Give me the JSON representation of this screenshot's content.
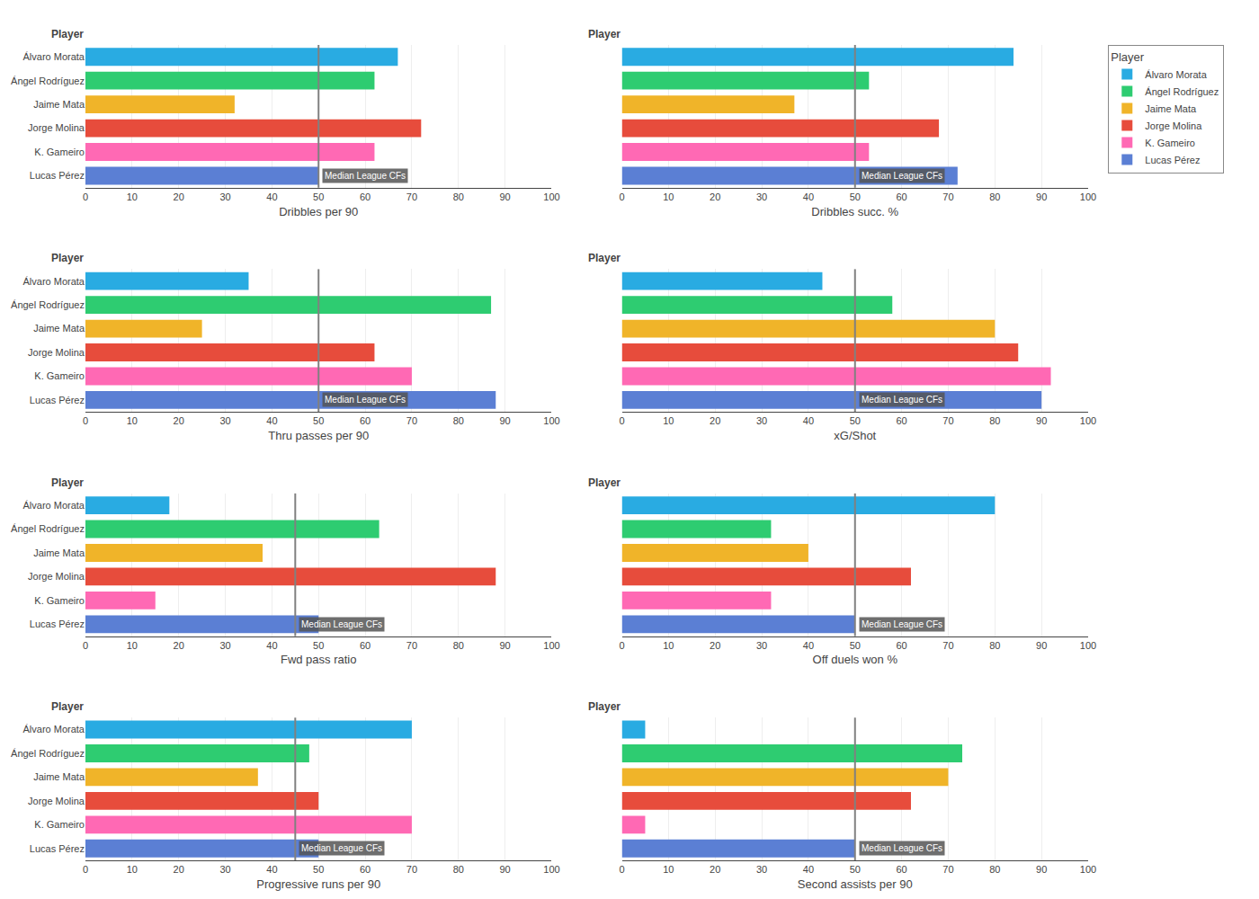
{
  "chart_data": [
    {
      "type": "bar",
      "orientation": "horizontal",
      "xlabel": "Dribbles per 90",
      "ylabel": "Player",
      "categories": [
        "Álvaro Morata",
        "Ángel Rodríguez",
        "Jaime Mata",
        "Jorge Molina",
        "K. Gameiro",
        "Lucas Pérez"
      ],
      "values": [
        67,
        62,
        32,
        72,
        62,
        50
      ],
      "colors": [
        "#29ABE2",
        "#2ECC71",
        "#F0B429",
        "#E74C3C",
        "#FF69B4",
        "#5B7FD4"
      ],
      "median": {
        "value": 50,
        "label": "Median League CFs",
        "color": "#808080"
      },
      "xlim": [
        0,
        100
      ],
      "xticks": [
        0,
        10,
        20,
        30,
        40,
        50,
        60,
        70,
        80,
        90,
        100
      ],
      "grid": true
    },
    {
      "type": "bar",
      "orientation": "horizontal",
      "xlabel": "Dribbles succ. %",
      "ylabel": "Player",
      "categories": [
        "Álvaro Morata",
        "Ángel Rodríguez",
        "Jaime Mata",
        "Jorge Molina",
        "K. Gameiro",
        "Lucas Pérez"
      ],
      "values": [
        84,
        53,
        37,
        68,
        53,
        72
      ],
      "colors": [
        "#29ABE2",
        "#2ECC71",
        "#F0B429",
        "#E74C3C",
        "#FF69B4",
        "#5B7FD4"
      ],
      "median": {
        "value": 50,
        "label": "Median League CFs",
        "color": "#808080"
      },
      "xlim": [
        0,
        100
      ],
      "xticks": [
        0,
        10,
        20,
        30,
        40,
        50,
        60,
        70,
        80,
        90,
        100
      ],
      "grid": true,
      "tick_labels": "x",
      "legend": "upper right",
      "legend_title": "Player"
    },
    {
      "type": "bar",
      "orientation": "horizontal",
      "xlabel": "Thru passes per 90",
      "ylabel": "Player",
      "categories": [
        "Álvaro Morata",
        "Ángel Rodríguez",
        "Jaime Mata",
        "Jorge Molina",
        "K. Gameiro",
        "Lucas Pérez"
      ],
      "values": [
        35,
        87,
        25,
        62,
        70,
        88
      ],
      "colors": [
        "#29ABE2",
        "#2ECC71",
        "#F0B429",
        "#E74C3C",
        "#FF69B4",
        "#5B7FD4"
      ],
      "median": {
        "value": 50,
        "label": "Median League CFs",
        "color": "#808080"
      },
      "xlim": [
        0,
        100
      ],
      "xticks": [
        0,
        10,
        20,
        30,
        40,
        50,
        60,
        70,
        80,
        90,
        100
      ],
      "grid": true
    },
    {
      "type": "bar",
      "orientation": "horizontal",
      "xlabel": "xG/Shot",
      "ylabel": "Player",
      "categories": [
        "Álvaro Morata",
        "Ángel Rodríguez",
        "Jaime Mata",
        "Jorge Molina",
        "K. Gameiro",
        "Lucas Pérez"
      ],
      "values": [
        43,
        58,
        80,
        85,
        92,
        90
      ],
      "colors": [
        "#29ABE2",
        "#2ECC71",
        "#F0B429",
        "#E74C3C",
        "#FF69B4",
        "#5B7FD4"
      ],
      "median": {
        "value": 50,
        "label": "Median League CFs",
        "color": "#808080"
      },
      "xlim": [
        0,
        100
      ],
      "xticks": [
        0,
        10,
        20,
        30,
        40,
        50,
        60,
        70,
        80,
        90,
        100
      ],
      "grid": true,
      "tick_labels": "x"
    },
    {
      "type": "bar",
      "orientation": "horizontal",
      "xlabel": "Fwd pass ratio",
      "ylabel": "Player",
      "categories": [
        "Álvaro Morata",
        "Ángel Rodríguez",
        "Jaime Mata",
        "Jorge Molina",
        "K. Gameiro",
        "Lucas Pérez"
      ],
      "values": [
        18,
        63,
        38,
        88,
        15,
        50
      ],
      "colors": [
        "#29ABE2",
        "#2ECC71",
        "#F0B429",
        "#E74C3C",
        "#FF69B4",
        "#5B7FD4"
      ],
      "median": {
        "value": 45,
        "label": "Median League CFs",
        "color": "#808080"
      },
      "xlim": [
        0,
        100
      ],
      "xticks": [
        0,
        10,
        20,
        30,
        40,
        50,
        60,
        70,
        80,
        90,
        100
      ],
      "grid": true
    },
    {
      "type": "bar",
      "orientation": "horizontal",
      "xlabel": "Off duels won %",
      "ylabel": "Player",
      "categories": [
        "Álvaro Morata",
        "Ángel Rodríguez",
        "Jaime Mata",
        "Jorge Molina",
        "K. Gameiro",
        "Lucas Pérez"
      ],
      "values": [
        80,
        32,
        40,
        62,
        32,
        50
      ],
      "colors": [
        "#29ABE2",
        "#2ECC71",
        "#F0B429",
        "#E74C3C",
        "#FF69B4",
        "#5B7FD4"
      ],
      "median": {
        "value": 50,
        "label": "Median League CFs",
        "color": "#808080"
      },
      "xlim": [
        0,
        100
      ],
      "xticks": [
        0,
        10,
        20,
        30,
        40,
        50,
        60,
        70,
        80,
        90,
        100
      ],
      "grid": true,
      "tick_labels": "x"
    },
    {
      "type": "bar",
      "orientation": "horizontal",
      "xlabel": "Progressive runs per 90",
      "ylabel": "Player",
      "categories": [
        "Álvaro Morata",
        "Ángel Rodríguez",
        "Jaime Mata",
        "Jorge Molina",
        "K. Gameiro",
        "Lucas Pérez"
      ],
      "values": [
        70,
        48,
        37,
        50,
        70,
        50
      ],
      "colors": [
        "#29ABE2",
        "#2ECC71",
        "#F0B429",
        "#E74C3C",
        "#FF69B4",
        "#5B7FD4"
      ],
      "median": {
        "value": 45,
        "label": "Median League CFs",
        "color": "#808080"
      },
      "xlim": [
        0,
        100
      ],
      "xticks": [
        0,
        10,
        20,
        30,
        40,
        50,
        60,
        70,
        80,
        90,
        100
      ],
      "grid": true
    },
    {
      "type": "bar",
      "orientation": "horizontal",
      "xlabel": "Second assists per 90",
      "ylabel": "Player",
      "categories": [
        "Álvaro Morata",
        "Ángel Rodríguez",
        "Jaime Mata",
        "Jorge Molina",
        "K. Gameiro",
        "Lucas Pérez"
      ],
      "values": [
        5,
        73,
        70,
        62,
        5,
        50
      ],
      "colors": [
        "#29ABE2",
        "#2ECC71",
        "#F0B429",
        "#E74C3C",
        "#FF69B4",
        "#5B7FD4"
      ],
      "median": {
        "value": 50,
        "label": "Median League CFs",
        "color": "#808080"
      },
      "xlim": [
        0,
        100
      ],
      "xticks": [
        0,
        10,
        20,
        30,
        40,
        50,
        60,
        70,
        80,
        90,
        100
      ],
      "grid": true,
      "tick_labels": "x"
    }
  ]
}
